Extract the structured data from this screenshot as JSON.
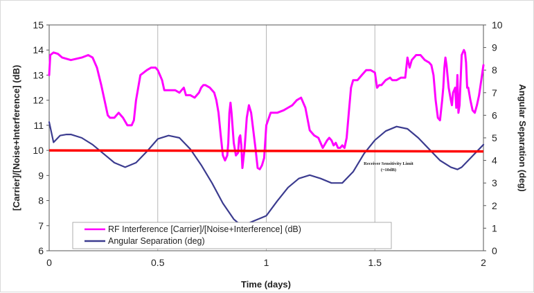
{
  "chart_data": {
    "type": "line",
    "xlabel": "Time (days)",
    "ylabel": "[Carrier]/[Noise+Interference] (dB)",
    "y2label": "Angular Separation (deg)",
    "xlim": [
      0,
      2
    ],
    "ylim": [
      6,
      15
    ],
    "y2lim": [
      0,
      10
    ],
    "xticks": [
      "0",
      "0.5",
      "1",
      "1.5",
      "2"
    ],
    "yticks": [
      "6",
      "7",
      "8",
      "9",
      "10",
      "11",
      "12",
      "13",
      "14",
      "15"
    ],
    "y2ticks": [
      "0",
      "1",
      "2",
      "3",
      "4",
      "5",
      "6",
      "7",
      "8",
      "9",
      "10"
    ],
    "grid": "vertical",
    "legend_position": "bottom-left",
    "threshold": {
      "y": 10,
      "color": "#ff0000",
      "label_line1": "Receiver Sensitivity Limit",
      "label_line2": "(~10dB)"
    },
    "series": [
      {
        "name": "RF Interference [Carrier]/[Noise+Interference] (dB)",
        "axis": "left",
        "color": "#ff00ff",
        "x": [
          0,
          0.005,
          0.02,
          0.04,
          0.06,
          0.1,
          0.15,
          0.18,
          0.2,
          0.22,
          0.24,
          0.26,
          0.27,
          0.28,
          0.29,
          0.3,
          0.31,
          0.32,
          0.34,
          0.36,
          0.38,
          0.39,
          0.4,
          0.42,
          0.45,
          0.47,
          0.49,
          0.5,
          0.51,
          0.52,
          0.53,
          0.55,
          0.58,
          0.6,
          0.61,
          0.62,
          0.63,
          0.65,
          0.67,
          0.69,
          0.7,
          0.71,
          0.72,
          0.74,
          0.76,
          0.77,
          0.78,
          0.79,
          0.8,
          0.81,
          0.82,
          0.825,
          0.83,
          0.835,
          0.84,
          0.85,
          0.86,
          0.87,
          0.875,
          0.88,
          0.885,
          0.89,
          0.9,
          0.91,
          0.92,
          0.93,
          0.94,
          0.95,
          0.96,
          0.97,
          0.98,
          0.99,
          1.0,
          1.02,
          1.05,
          1.08,
          1.1,
          1.12,
          1.14,
          1.16,
          1.18,
          1.2,
          1.22,
          1.24,
          1.26,
          1.28,
          1.29,
          1.3,
          1.31,
          1.32,
          1.33,
          1.34,
          1.35,
          1.36,
          1.37,
          1.38,
          1.39,
          1.4,
          1.42,
          1.44,
          1.46,
          1.48,
          1.5,
          1.51,
          1.52,
          1.53,
          1.55,
          1.57,
          1.58,
          1.6,
          1.62,
          1.64,
          1.65,
          1.66,
          1.67,
          1.69,
          1.71,
          1.73,
          1.75,
          1.76,
          1.77,
          1.78,
          1.79,
          1.8,
          1.81,
          1.815,
          1.82,
          1.825,
          1.83,
          1.84,
          1.85,
          1.855,
          1.86,
          1.87,
          1.875,
          1.88,
          1.885,
          1.89,
          1.9,
          1.91,
          1.915,
          1.92,
          1.925,
          1.93,
          1.94,
          1.95,
          1.96,
          1.97,
          1.98,
          1.99,
          2.0
        ],
        "y": [
          13.0,
          13.8,
          13.9,
          13.85,
          13.7,
          13.6,
          13.7,
          13.8,
          13.7,
          13.3,
          12.6,
          11.8,
          11.4,
          11.3,
          11.3,
          11.3,
          11.4,
          11.5,
          11.3,
          11.0,
          11.0,
          11.2,
          12.0,
          13.0,
          13.2,
          13.3,
          13.3,
          13.2,
          13.0,
          12.8,
          12.4,
          12.4,
          12.4,
          12.3,
          12.4,
          12.5,
          12.2,
          12.2,
          12.1,
          12.3,
          12.5,
          12.6,
          12.6,
          12.5,
          12.3,
          12.0,
          11.5,
          10.6,
          9.8,
          9.6,
          9.8,
          10.3,
          11.5,
          11.9,
          11.5,
          10.3,
          9.8,
          9.9,
          10.5,
          10.6,
          10.2,
          9.3,
          10.1,
          11.3,
          11.8,
          11.5,
          10.8,
          10.1,
          9.3,
          9.25,
          9.4,
          9.7,
          11.0,
          11.5,
          11.5,
          11.6,
          11.7,
          11.8,
          12.0,
          12.1,
          11.7,
          10.8,
          10.6,
          10.5,
          10.1,
          10.4,
          10.5,
          10.4,
          10.2,
          10.3,
          10.1,
          10.1,
          10.2,
          10.1,
          10.5,
          11.5,
          12.5,
          12.8,
          12.8,
          13.0,
          13.2,
          13.2,
          13.1,
          12.5,
          12.6,
          12.6,
          12.8,
          12.9,
          12.8,
          12.8,
          12.9,
          12.9,
          13.7,
          13.3,
          13.6,
          13.8,
          13.8,
          13.6,
          13.5,
          13.4,
          13.0,
          12.0,
          11.3,
          11.2,
          12.0,
          12.5,
          13.3,
          13.7,
          13.4,
          12.5,
          12.0,
          11.8,
          12.3,
          12.5,
          11.7,
          13.0,
          11.5,
          11.8,
          13.8,
          14.0,
          13.9,
          13.5,
          12.5,
          12.5,
          12.0,
          11.6,
          11.5,
          11.8,
          12.2,
          12.8,
          13.4
        ]
      },
      {
        "name": "Angular Separation (deg)",
        "axis": "right",
        "color": "#3b3b8f",
        "x": [
          0,
          0.02,
          0.05,
          0.08,
          0.1,
          0.15,
          0.2,
          0.25,
          0.3,
          0.35,
          0.4,
          0.45,
          0.5,
          0.55,
          0.6,
          0.65,
          0.7,
          0.75,
          0.8,
          0.85,
          0.88,
          0.9,
          0.95,
          1.0,
          1.05,
          1.1,
          1.15,
          1.2,
          1.25,
          1.3,
          1.35,
          1.4,
          1.45,
          1.5,
          1.55,
          1.6,
          1.65,
          1.7,
          1.75,
          1.8,
          1.85,
          1.88,
          1.9,
          1.95,
          2.0
        ],
        "y": [
          5.7,
          4.8,
          5.1,
          5.15,
          5.15,
          5.0,
          4.7,
          4.3,
          3.9,
          3.7,
          3.9,
          4.4,
          4.95,
          5.1,
          5.0,
          4.5,
          3.8,
          3.0,
          2.1,
          1.4,
          1.15,
          1.15,
          1.35,
          1.55,
          2.2,
          2.8,
          3.2,
          3.35,
          3.2,
          3.0,
          3.0,
          3.5,
          4.3,
          4.9,
          5.3,
          5.5,
          5.4,
          5.0,
          4.5,
          4.0,
          3.7,
          3.6,
          3.7,
          4.2,
          4.7
        ]
      }
    ]
  }
}
